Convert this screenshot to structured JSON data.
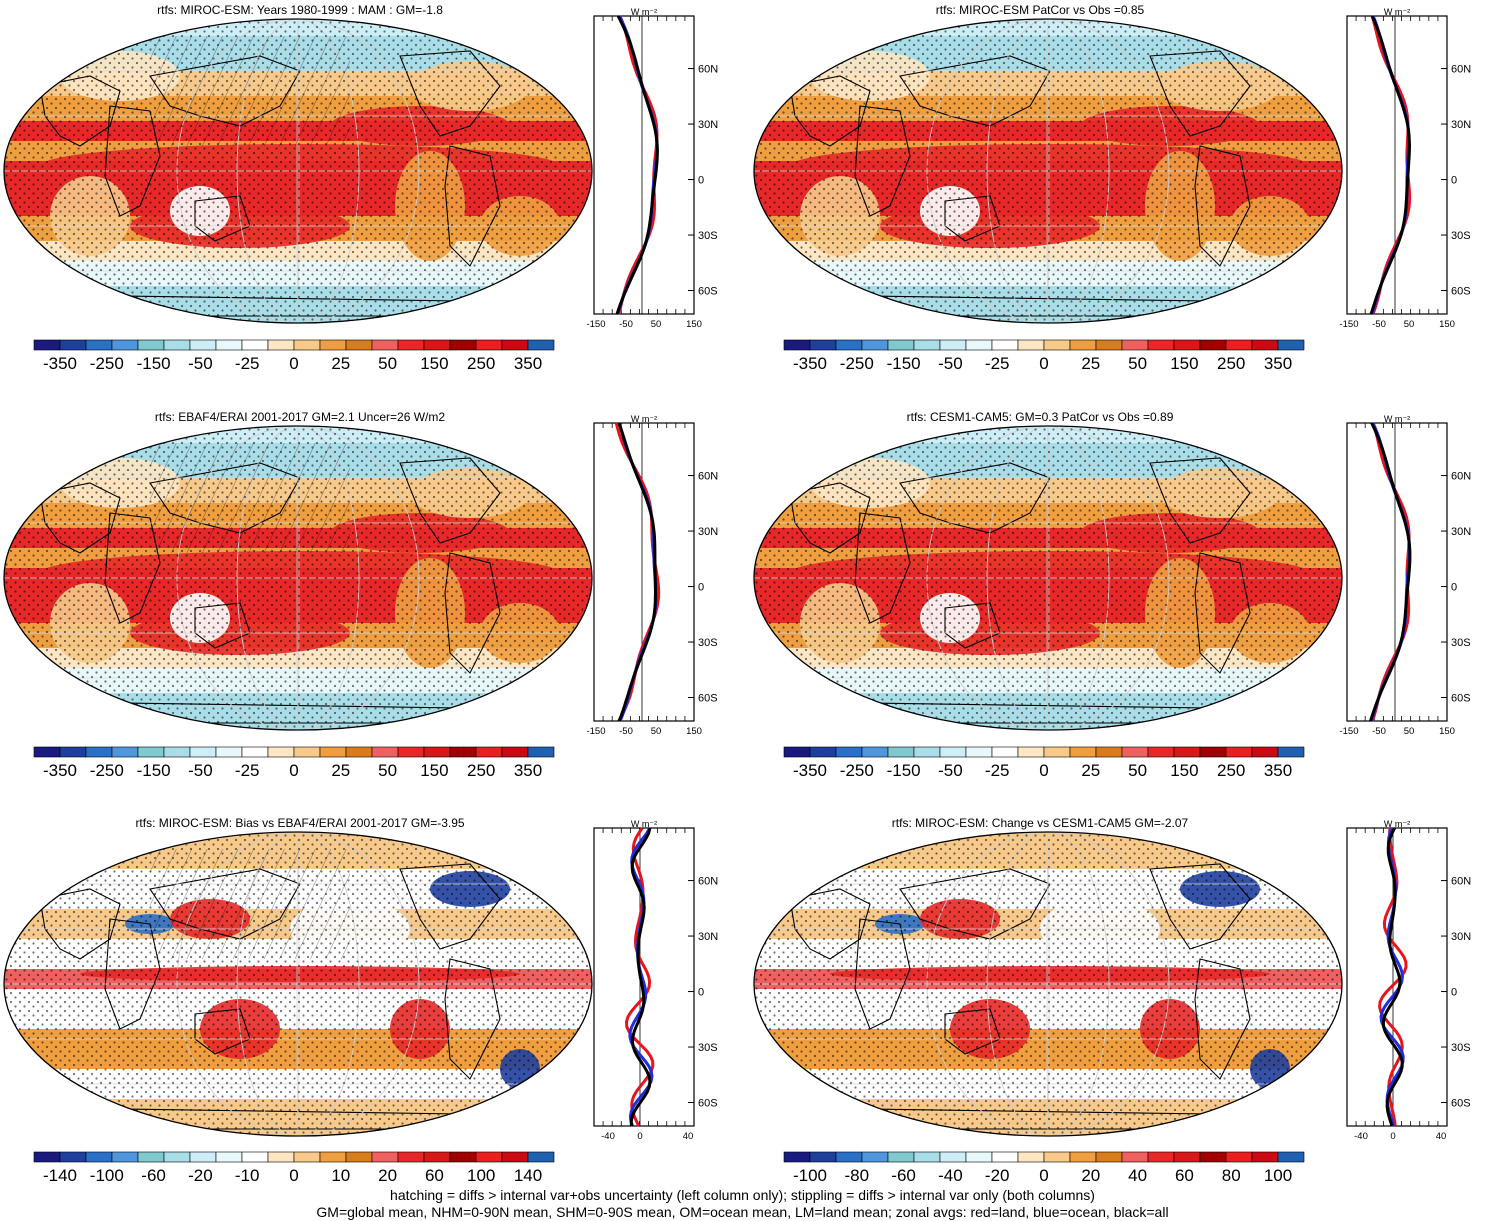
{
  "panels": [
    {
      "title": "rtfs: MIROC-ESM: Years 1980-1999 : MAM : GM=-1.8",
      "cbar": "main",
      "zonal_ticks": "main",
      "pattern": "a"
    },
    {
      "title": "rtfs: MIROC-ESM PatCor vs Obs =0.85",
      "cbar": "main",
      "zonal_ticks": "main",
      "pattern": "b"
    },
    {
      "title": "rtfs: EBAF4/ERAI 2001-2017 GM=2.1 Uncer=26 W/m2",
      "cbar": "main",
      "zonal_ticks": "main",
      "pattern": "c"
    },
    {
      "title": "rtfs: CESM1-CAM5: GM=0.3 PatCor vs Obs =0.89",
      "cbar": "main",
      "zonal_ticks": "main",
      "pattern": "d"
    },
    {
      "title": "rtfs: MIROC-ESM: Bias vs EBAF4/ERAI 2001-2017 GM=-3.95",
      "cbar": "bias",
      "zonal_ticks": "bias",
      "pattern": "e"
    },
    {
      "title": "rtfs: MIROC-ESM: Change vs CESM1-CAM5 GM=-2.07",
      "cbar": "change",
      "zonal_ticks": "bias",
      "pattern": "f"
    }
  ],
  "colorbars": {
    "main": {
      "labels": [
        "-350",
        "-250",
        "-150",
        "-50",
        "-25",
        "0",
        "25",
        "50",
        "150",
        "250",
        "350"
      ]
    },
    "bias": {
      "labels": [
        "-140",
        "-100",
        "-60",
        "-20",
        "-10",
        "0",
        "10",
        "20",
        "60",
        "100",
        "140"
      ]
    },
    "change": {
      "labels": [
        "-100",
        "-80",
        "-60",
        "-40",
        "-20",
        "0",
        "20",
        "40",
        "60",
        "80",
        "100"
      ]
    }
  },
  "zonal_axes": {
    "unit": "W m⁻²",
    "lat_labels": [
      "60N",
      "30N",
      "0",
      "30S",
      "60S"
    ],
    "main_x_labels": [
      "-150",
      "-50",
      "50",
      "150"
    ],
    "bias_x_labels": [
      "-40",
      "0",
      "40"
    ]
  },
  "footer": {
    "line1": "hatching = diffs > internal var+obs uncertainty (left column only); stippling = diffs > internal var only (both columns)",
    "line2": "GM=global mean, NHM=0-90N mean, SHM=0-90S mean, OM=ocean mean, LM=land mean; zonal avgs: red=land, blue=ocean, black=all"
  },
  "chart_data": [
    {
      "type": "heatmap",
      "title": "rtfs: MIROC-ESM: Years 1980-1999 : MAM : GM=-1.8",
      "units": "W m-2",
      "global_mean": -1.8,
      "zonal_series": [
        "land",
        "ocean",
        "all"
      ],
      "series_colors": {
        "land": "#e8141c",
        "ocean": "#1f2fe0",
        "all": "#000000"
      },
      "colorbar_levels": [
        "-350",
        "-250",
        "-150",
        "-50",
        "-25",
        "0",
        "25",
        "50",
        "150",
        "250",
        "350"
      ]
    },
    {
      "type": "heatmap",
      "title": "rtfs: MIROC-ESM PatCor vs Obs =0.85",
      "pattern_correlation": 0.85,
      "colorbar_levels": [
        "-350",
        "-250",
        "-150",
        "-50",
        "-25",
        "0",
        "25",
        "50",
        "150",
        "250",
        "350"
      ]
    },
    {
      "type": "heatmap",
      "title": "rtfs: EBAF4/ERAI 2001-2017 GM=2.1 Uncer=26 W/m2",
      "global_mean": 2.1,
      "uncertainty": 26,
      "colorbar_levels": [
        "-350",
        "-250",
        "-150",
        "-50",
        "-25",
        "0",
        "25",
        "50",
        "150",
        "250",
        "350"
      ]
    },
    {
      "type": "heatmap",
      "title": "rtfs: CESM1-CAM5: GM=0.3 PatCor vs Obs =0.89",
      "global_mean": 0.3,
      "pattern_correlation": 0.89,
      "colorbar_levels": [
        "-350",
        "-250",
        "-150",
        "-50",
        "-25",
        "0",
        "25",
        "50",
        "150",
        "250",
        "350"
      ]
    },
    {
      "type": "heatmap",
      "title": "rtfs: MIROC-ESM: Bias vs EBAF4/ERAI 2001-2017 GM=-3.95",
      "global_mean": -3.95,
      "colorbar_levels": [
        "-140",
        "-100",
        "-60",
        "-20",
        "-10",
        "0",
        "10",
        "20",
        "60",
        "100",
        "140"
      ]
    },
    {
      "type": "heatmap",
      "title": "rtfs: MIROC-ESM: Change vs CESM1-CAM5 GM=-2.07",
      "global_mean": -2.07,
      "colorbar_levels": [
        "-100",
        "-80",
        "-60",
        "-40",
        "-20",
        "0",
        "20",
        "40",
        "60",
        "80",
        "100"
      ]
    }
  ],
  "colors": {
    "palette": [
      "#1a1a80",
      "#1f3f9e",
      "#2a6fc8",
      "#4f96dd",
      "#7fc9cf",
      "#a9dde8",
      "#cdeef6",
      "#e9f8fb",
      "#ffffff",
      "#fde6c3",
      "#f7c98a",
      "#ef9f40",
      "#d97c1c",
      "#f06060",
      "#e82828",
      "#d81818",
      "#a00000",
      "#e82020",
      "#cc0a14",
      "#2060b0"
    ],
    "land_line": "#e8141c",
    "ocean_line": "#1f2fe0",
    "all_line": "#000000"
  }
}
